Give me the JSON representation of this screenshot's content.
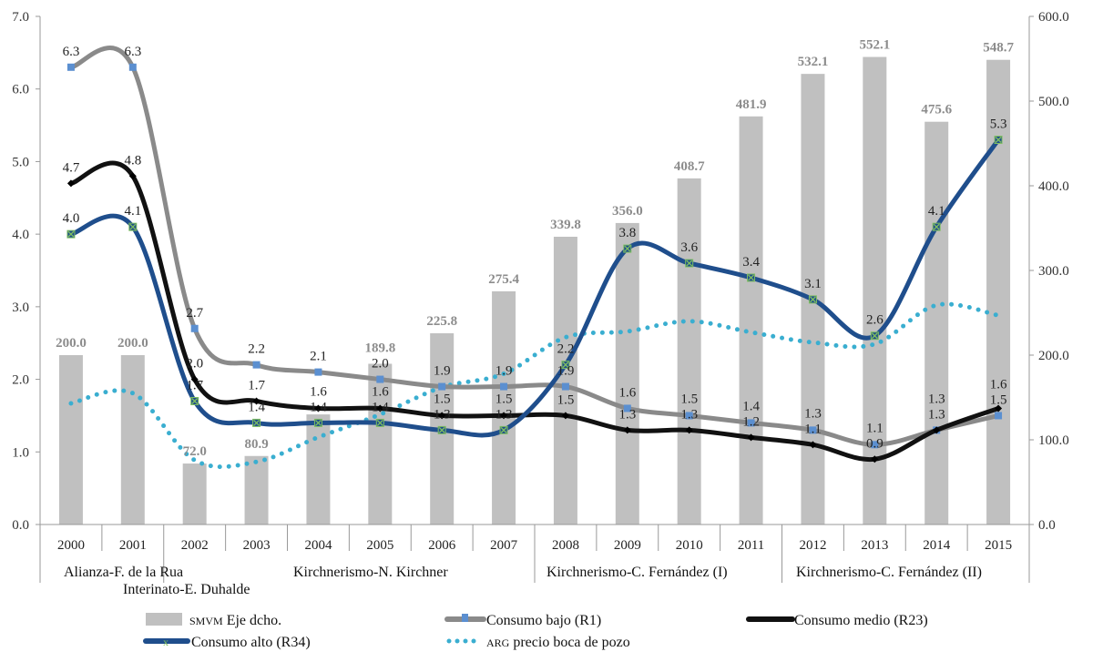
{
  "chart_data": {
    "type": "bar+line",
    "categories": [
      "2000",
      "2001",
      "2002",
      "2003",
      "2004",
      "2005",
      "2006",
      "2007",
      "2008",
      "2009",
      "2010",
      "2011",
      "2012",
      "2013",
      "2014",
      "2015"
    ],
    "y_left": {
      "range": [
        0,
        7
      ],
      "ticks": [
        "0.0",
        "1.0",
        "2.0",
        "3.0",
        "4.0",
        "5.0",
        "6.0",
        "7.0"
      ]
    },
    "y_right": {
      "range": [
        0,
        600
      ],
      "ticks": [
        "0.0",
        "100.0",
        "200.0",
        "300.0",
        "400.0",
        "500.0",
        "600.0"
      ]
    },
    "grid": false,
    "legend_position": "bottom",
    "series": [
      {
        "name_small": "SMVM",
        "name": "Eje dcho.",
        "kind": "bar",
        "axis": "right",
        "color": "#c0c0c0",
        "values": [
          200.0,
          200.0,
          72.0,
          80.9,
          130,
          189.8,
          225.8,
          275.4,
          339.8,
          356.0,
          408.7,
          481.9,
          532.1,
          552.1,
          475.6,
          548.7
        ],
        "labels": [
          "200.0",
          "200.0",
          "72.0",
          "80.9",
          null,
          "189.8",
          "225.8",
          "275.4",
          "339.8",
          "356.0",
          "408.7",
          "481.9",
          "532.1",
          "552.1",
          "475.6",
          "548.7"
        ]
      },
      {
        "name": "Consumo bajo (R1)",
        "kind": "line",
        "axis": "left",
        "color": "#8a8a8a",
        "marker": "square",
        "marker_color": "#5b8fd0",
        "values": [
          6.3,
          6.3,
          2.7,
          2.2,
          2.1,
          2.0,
          1.9,
          1.9,
          1.9,
          1.6,
          1.5,
          1.4,
          1.3,
          1.1,
          1.3,
          1.5
        ]
      },
      {
        "name": "Consumo medio (R23)",
        "kind": "line",
        "axis": "left",
        "color": "#111111",
        "marker": "diamond",
        "values": [
          4.7,
          4.8,
          2.0,
          1.7,
          1.6,
          1.6,
          1.5,
          1.5,
          1.5,
          1.3,
          1.3,
          1.2,
          1.1,
          0.9,
          1.3,
          1.6
        ]
      },
      {
        "name": "Consumo alto (R34)",
        "kind": "line",
        "axis": "left",
        "color": "#1f4e8c",
        "marker": "x-square",
        "marker_color": "#7fbf5f",
        "values": [
          4.0,
          4.1,
          1.7,
          1.4,
          1.4,
          1.4,
          1.3,
          1.3,
          2.2,
          3.8,
          3.6,
          3.4,
          3.1,
          2.6,
          4.1,
          5.3
        ]
      },
      {
        "name_small": "ARG",
        "name": "precio boca de pozo",
        "kind": "line-dotted",
        "axis": "right",
        "color": "#3aaed0",
        "values": [
          143,
          155,
          76,
          74,
          103,
          130,
          162,
          178,
          221,
          228,
          240,
          227,
          215,
          213,
          259,
          247
        ]
      }
    ],
    "periods": [
      {
        "label": "Alianza-F. de la Rua"
      },
      {
        "label": "Interinato-E. Duhalde"
      },
      {
        "label": "Kirchnerismo-N. Kirchner"
      },
      {
        "label": "Kirchnerismo-C. Fernández (I)"
      },
      {
        "label": "Kirchnerismo-C. Fernández (II)"
      }
    ]
  }
}
